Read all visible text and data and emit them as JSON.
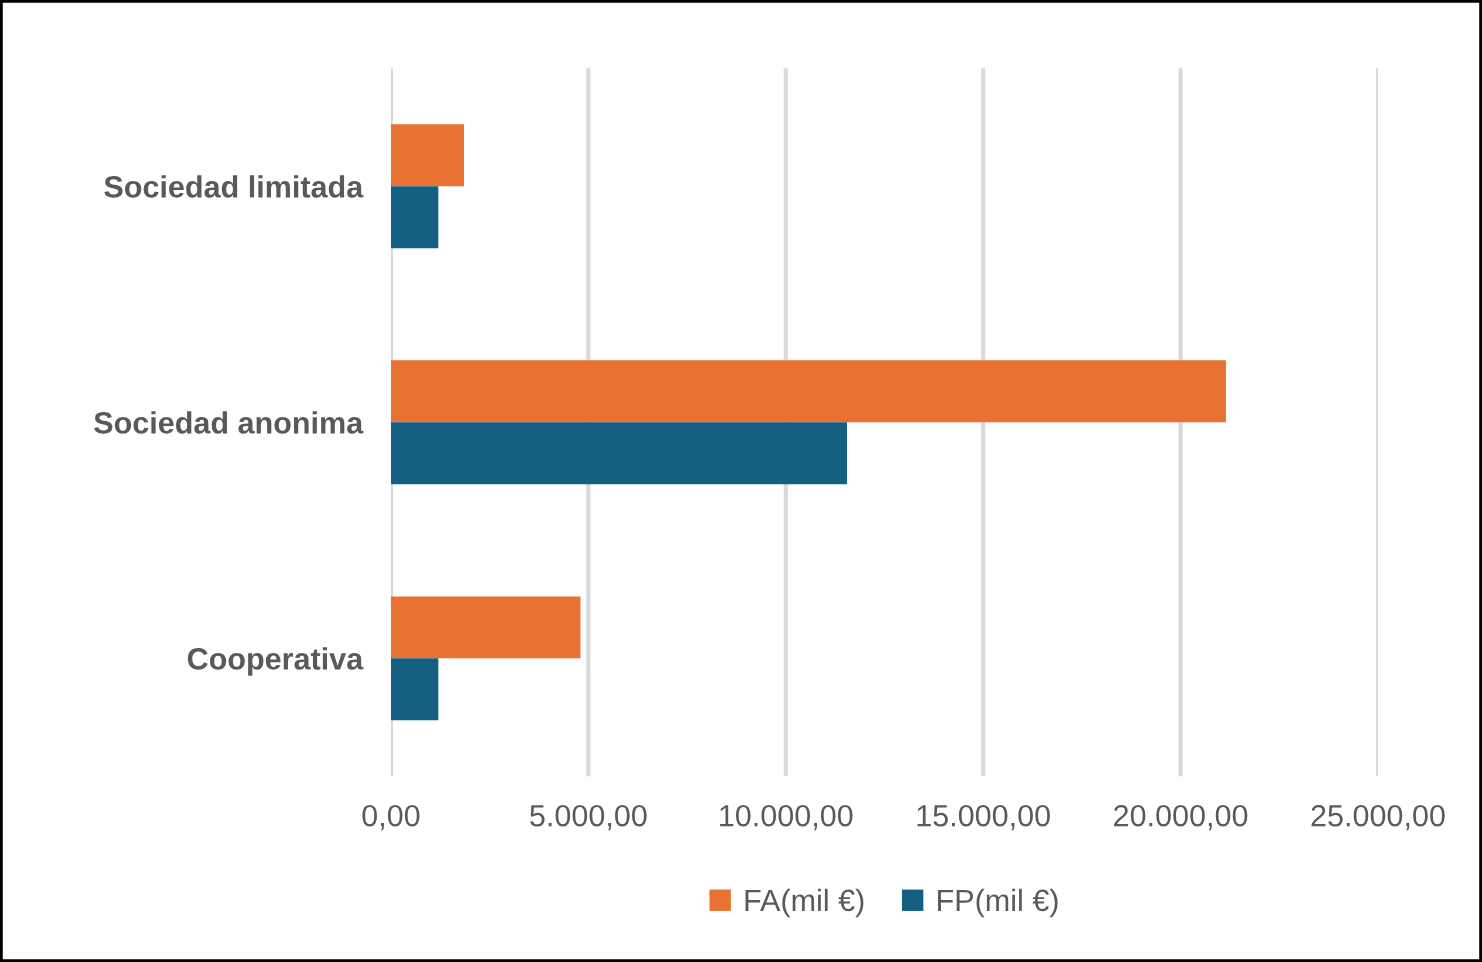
{
  "chart_data": {
    "type": "bar",
    "orientation": "horizontal",
    "categories": [
      "Sociedad limitada",
      "Sociedad anonima",
      "Cooperativa"
    ],
    "series": [
      {
        "name": "FA(mil €)",
        "color": "#e97132",
        "values": [
          1850,
          21150,
          4800
        ]
      },
      {
        "name": "FP(mil €)",
        "color": "#156082",
        "values": [
          1200,
          11550,
          1200
        ]
      }
    ],
    "xlim": [
      0,
      25000
    ],
    "xticks": [
      {
        "value": 0,
        "label": "0,00"
      },
      {
        "value": 5000,
        "label": "5.000,00"
      },
      {
        "value": 10000,
        "label": "10.000,00"
      },
      {
        "value": 15000,
        "label": "15.000,00"
      },
      {
        "value": 20000,
        "label": "20.000,00"
      },
      {
        "value": 25000,
        "label": "25.000,00"
      }
    ],
    "grid": "x",
    "legend": "bottom"
  }
}
